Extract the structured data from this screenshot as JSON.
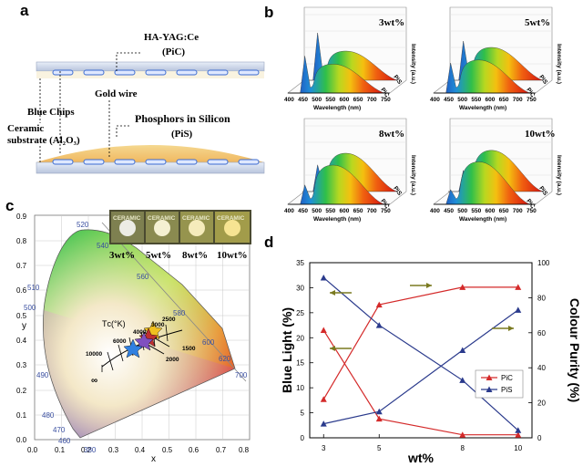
{
  "panels": {
    "a": "a",
    "b": "b",
    "c": "c",
    "d": "d"
  },
  "panel_a": {
    "pic_label_line1": "HA-YAG:Ce",
    "pic_label_line2": "(PiC)",
    "gold_wire": "Gold wire",
    "blue_chips": "Blue Chips",
    "substrate_line1": "Ceramic",
    "substrate_line2": "substrate (Al₂O₃)",
    "pis_label_line1": "Phosphors in Silicon",
    "pis_label_line2": "(PiS)"
  },
  "panel_b": {
    "spectra": [
      {
        "wt": "3wt%"
      },
      {
        "wt": "5wt%"
      },
      {
        "wt": "8wt%"
      },
      {
        "wt": "10wt%"
      }
    ],
    "xlabel": "Wavelength (nm)",
    "ylabel": "Intensity (a.u.)",
    "xticks": [
      "400",
      "450",
      "500",
      "550",
      "600",
      "650",
      "700",
      "750"
    ],
    "series_front": "PiC",
    "series_back": "PiS"
  },
  "panel_c": {
    "xlabel": "x",
    "ylabel": "y",
    "xticks": [
      "0.0",
      "0.1",
      "0.2",
      "0.3",
      "0.4",
      "0.5",
      "0.6",
      "0.7",
      "0.8"
    ],
    "yticks": [
      "0.0",
      "0.1",
      "0.2",
      "0.3",
      "0.4",
      "0.5",
      "0.6",
      "0.7",
      "0.8",
      "0.9"
    ],
    "wavelength_labels": [
      "520",
      "540",
      "560",
      "580",
      "600",
      "620",
      "700",
      "510",
      "500",
      "490",
      "480",
      "470",
      "460",
      "380"
    ],
    "cct_label": "Tᴄ(°K)",
    "cct_values": [
      "10000",
      "6000",
      "4000",
      "3000",
      "2500",
      "2000",
      "1500",
      "∞"
    ],
    "inset_labels": [
      "3wt%",
      "5wt%",
      "8wt%",
      "10wt%"
    ],
    "inset_text": "CERAMIC"
  },
  "chart_data": {
    "type": "line",
    "x": [
      3,
      5,
      8,
      10
    ],
    "categories": [
      "3",
      "5",
      "8",
      "10"
    ],
    "xlabel": "wt%",
    "ylabel": "Blue Light (%)",
    "ylabel_right": "Colour Purity (%)",
    "ylim": [
      0,
      35
    ],
    "ylim_right": [
      0,
      100
    ],
    "yticks": [
      "0",
      "5",
      "10",
      "15",
      "20",
      "25",
      "30",
      "35"
    ],
    "yticks_right": [
      "0",
      "20",
      "40",
      "60",
      "80",
      "100"
    ],
    "series": [
      {
        "name": "PiC",
        "axis": "left",
        "color": "#d42a2a",
        "values": [
          21.5,
          3.8,
          0.6,
          0.6
        ]
      },
      {
        "name": "PiC",
        "axis": "right",
        "color": "#d42a2a",
        "values": [
          22,
          76,
          86,
          86
        ]
      },
      {
        "name": "PiS",
        "axis": "left",
        "color": "#2a3a8c",
        "values": [
          32,
          22.5,
          11.5,
          1.5
        ]
      },
      {
        "name": "PiS",
        "axis": "right",
        "color": "#2a3a8c",
        "values": [
          8,
          15,
          50,
          73
        ]
      }
    ],
    "legend": {
      "placement": "bottom-right",
      "entries": [
        "PiC",
        "PiS"
      ]
    }
  }
}
